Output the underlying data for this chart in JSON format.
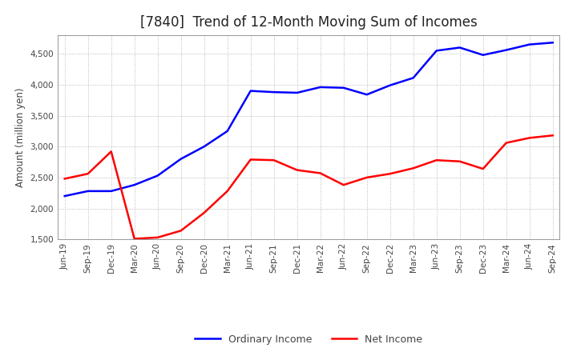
{
  "title": "[7840]  Trend of 12-Month Moving Sum of Incomes",
  "ylabel": "Amount (million yen)",
  "ylim": [
    1500,
    4800
  ],
  "yticks": [
    1500,
    2000,
    2500,
    3000,
    3500,
    4000,
    4500
  ],
  "background_color": "#ffffff",
  "plot_bg_color": "#ffffff",
  "grid_color": "#aaaaaa",
  "labels": [
    "Jun-19",
    "Sep-19",
    "Dec-19",
    "Mar-20",
    "Jun-20",
    "Sep-20",
    "Dec-20",
    "Mar-21",
    "Jun-21",
    "Sep-21",
    "Dec-21",
    "Mar-22",
    "Jun-22",
    "Sep-22",
    "Dec-22",
    "Mar-23",
    "Jun-23",
    "Sep-23",
    "Dec-23",
    "Mar-24",
    "Jun-24",
    "Sep-24"
  ],
  "ordinary_income": [
    2200,
    2280,
    2280,
    2380,
    2530,
    2800,
    3000,
    3250,
    3900,
    3880,
    3870,
    3960,
    3950,
    3840,
    3990,
    4110,
    4550,
    4600,
    4480,
    4560,
    4650,
    4680
  ],
  "net_income": [
    2480,
    2560,
    2920,
    1510,
    1530,
    1640,
    1930,
    2280,
    2790,
    2780,
    2620,
    2570,
    2380,
    2500,
    2560,
    2650,
    2780,
    2760,
    2640,
    3060,
    3140,
    3180
  ],
  "ordinary_color": "#0000ff",
  "net_color": "#ff0000",
  "line_width": 1.8,
  "title_fontsize": 12,
  "tick_fontsize": 7.5,
  "ylabel_fontsize": 8.5,
  "legend_fontsize": 9
}
